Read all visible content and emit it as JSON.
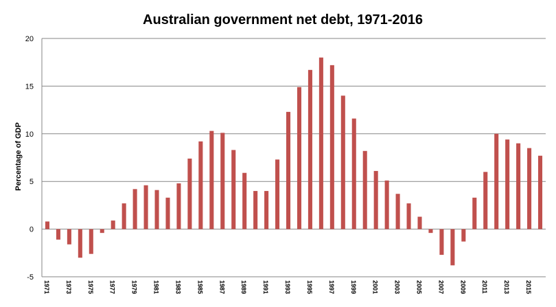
{
  "chart_data": {
    "type": "bar",
    "title": "Australian government net debt, 1971-2016",
    "xlabel": "",
    "ylabel": "Percentage of GDP",
    "ylim": [
      -5,
      20
    ],
    "yticks": [
      "-5",
      "0",
      "5",
      "10",
      "15",
      "20"
    ],
    "grid": true,
    "legend": "none",
    "bar_color": "#c0504d",
    "categories": [
      "1971",
      "1972",
      "1973",
      "1974",
      "1975",
      "1976",
      "1977",
      "1978",
      "1979",
      "1980",
      "1981",
      "1982",
      "1983",
      "1984",
      "1985",
      "1986",
      "1987",
      "1988",
      "1989",
      "1990",
      "1991",
      "1992",
      "1993",
      "1994",
      "1995",
      "1996",
      "1997",
      "1998",
      "1999",
      "2000",
      "2001",
      "2002",
      "2003",
      "2004",
      "2005",
      "2006",
      "2007",
      "2008",
      "2009",
      "2010",
      "2011",
      "2012",
      "2013",
      "2014",
      "2015",
      "2016"
    ],
    "tick_labels": [
      "1971",
      "1973",
      "1975",
      "1977",
      "1979",
      "1981",
      "1983",
      "1985",
      "1987",
      "1989",
      "1991",
      "1993",
      "1995",
      "1997",
      "1999",
      "2001",
      "2003",
      "2005",
      "2007",
      "2009",
      "2011",
      "2013",
      "2015"
    ],
    "values": [
      0.8,
      -1.1,
      -1.6,
      -3.0,
      -2.6,
      -0.4,
      0.9,
      2.7,
      4.2,
      4.6,
      4.1,
      3.3,
      4.8,
      7.4,
      9.2,
      10.3,
      10.1,
      8.3,
      5.9,
      4.0,
      4.0,
      7.3,
      12.3,
      14.9,
      16.7,
      18.0,
      17.2,
      14.0,
      11.6,
      8.2,
      6.1,
      5.1,
      3.7,
      2.7,
      1.3,
      -0.4,
      -2.7,
      -3.8,
      -1.3,
      3.3,
      6.0,
      10.0,
      9.4,
      9.0,
      8.5,
      7.7
    ]
  }
}
